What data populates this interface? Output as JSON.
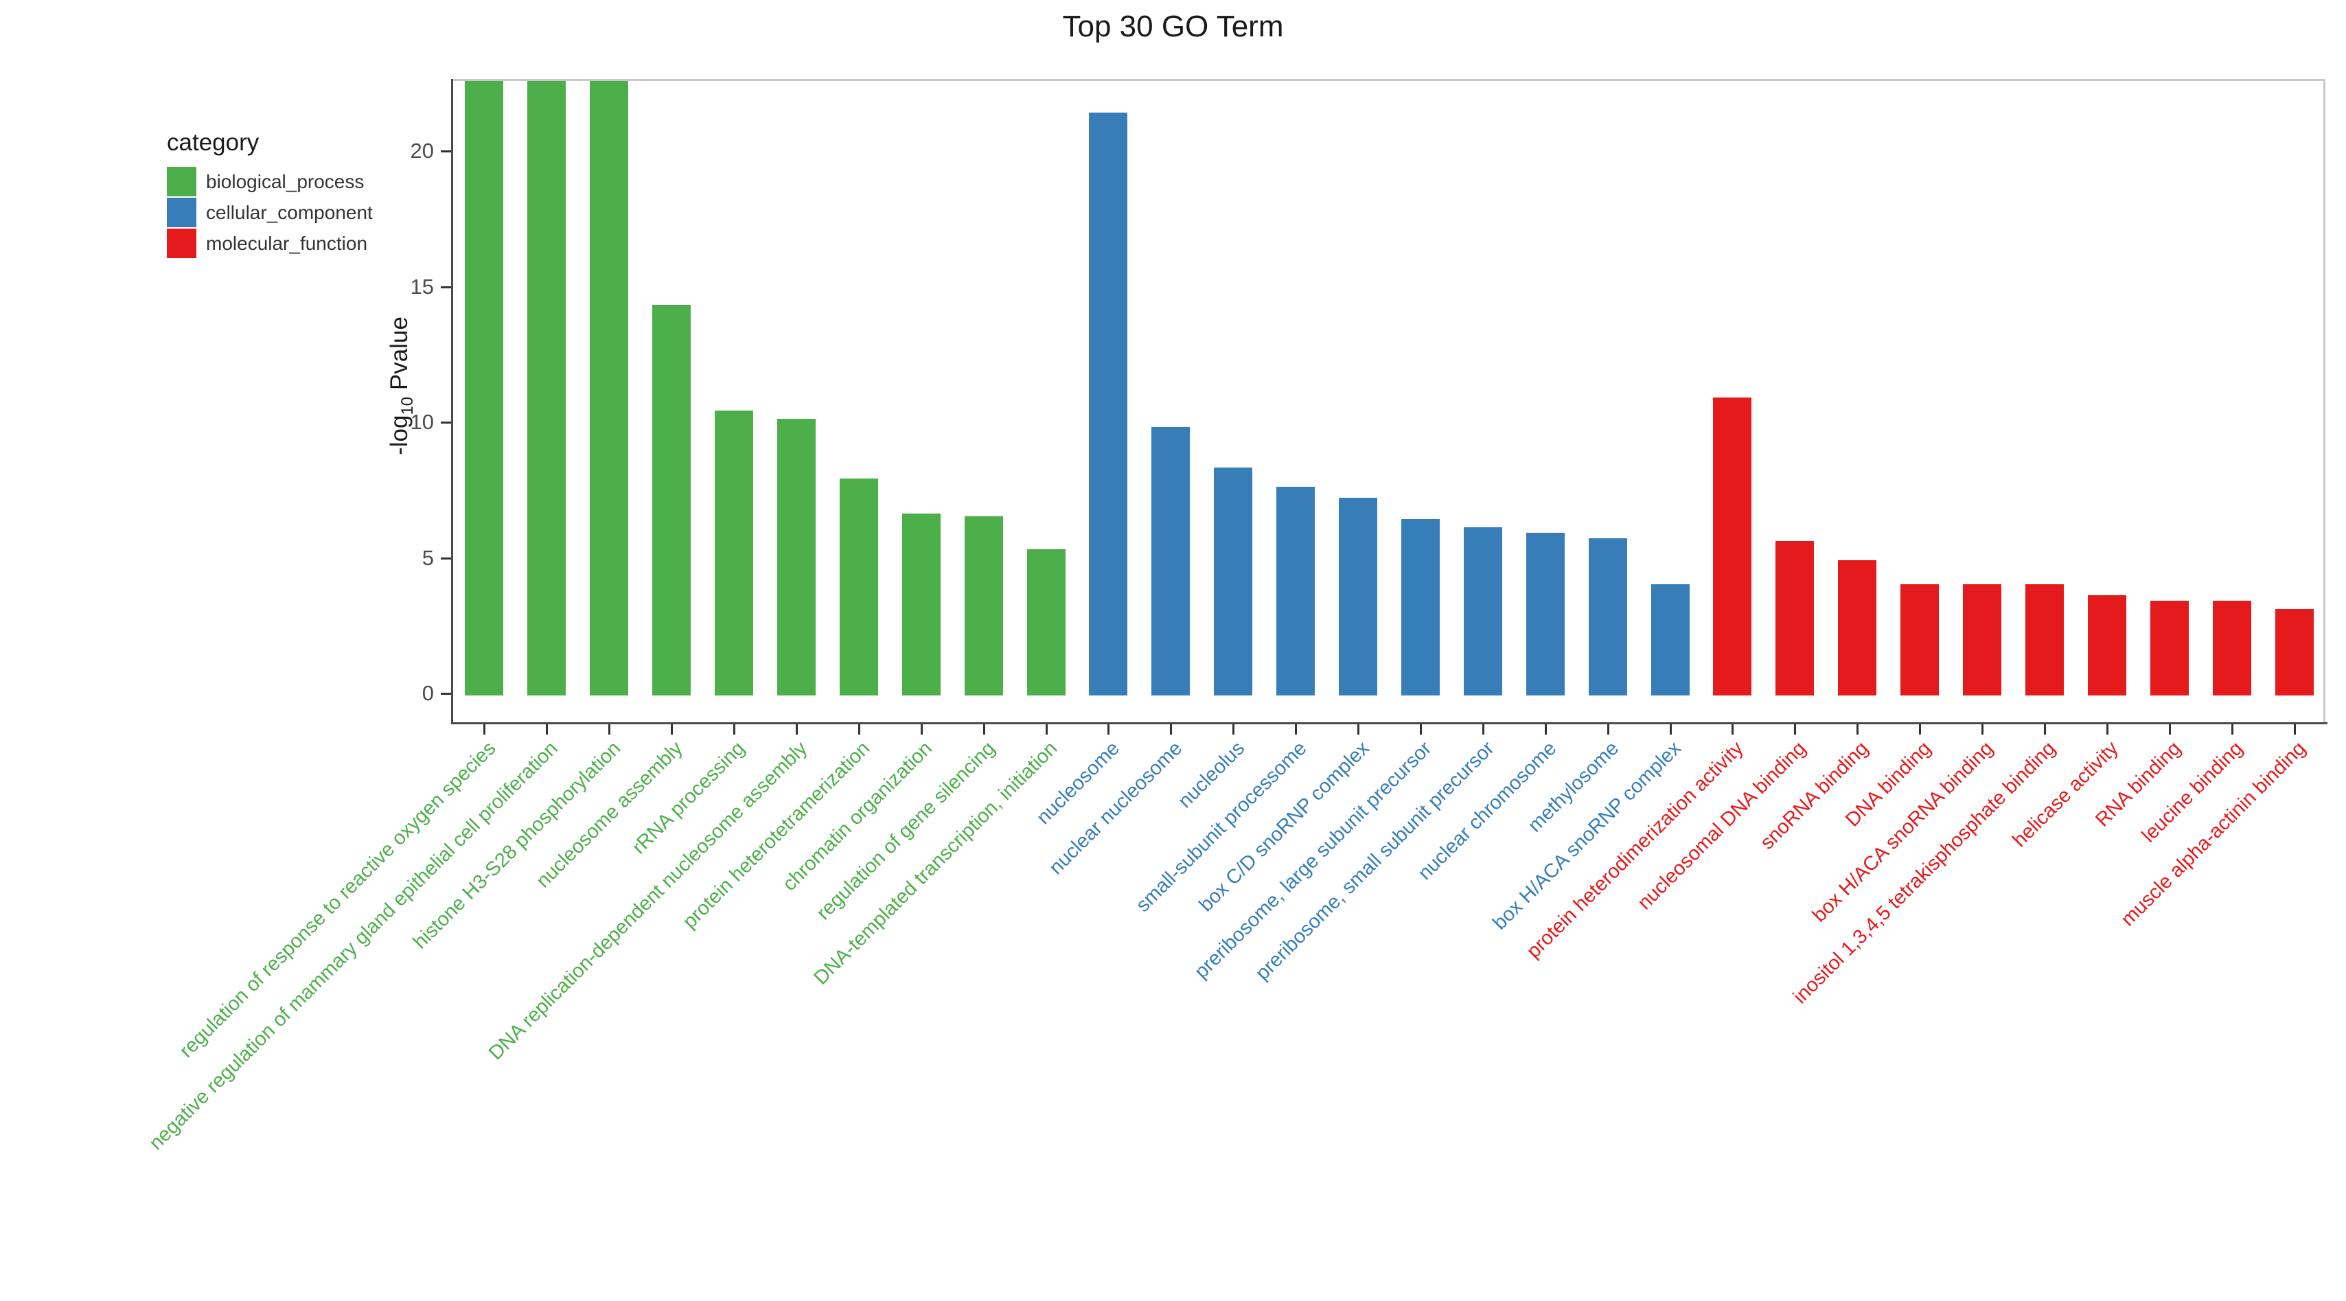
{
  "title": "Top 30 GO Term",
  "y_axis": {
    "label_prefix": "-log",
    "label_sub": "10",
    "label_suffix": " Pvalue",
    "ticks": [
      0,
      5,
      10,
      15,
      20
    ]
  },
  "legend": {
    "title": "category",
    "items": [
      {
        "label": "biological_process",
        "color": "#4DAF4A"
      },
      {
        "label": "cellular_component",
        "color": "#377EB8"
      },
      {
        "label": "molecular_function",
        "color": "#E41A1C"
      }
    ]
  },
  "colors": {
    "biological_process": "#4DAF4A",
    "cellular_component": "#377EB8",
    "molecular_function": "#E41A1C",
    "axis": "#4a4a4a",
    "panel_border": "#c8c8c8",
    "tick_text": "#4d4d4d",
    "title_text": "#1a1a1a"
  },
  "chart_data": {
    "type": "bar",
    "title": "Top 30 GO Term",
    "xlabel": "",
    "ylabel": "-log10 Pvalue",
    "ylim": [
      0,
      22.7
    ],
    "grid": false,
    "legend_position": "left-top-outside",
    "note": "first three bars are clipped at the top of the panel (values exceed visible axis range)",
    "bars": [
      {
        "label": "regulation of response to reactive oxygen species",
        "category": "biological_process",
        "value": 23.0,
        "clipped": true
      },
      {
        "label": "negative regulation of mammary gland epithelial cell proliferation",
        "category": "biological_process",
        "value": 23.0,
        "clipped": true
      },
      {
        "label": "histone H3-S28 phosphorylation",
        "category": "biological_process",
        "value": 23.0,
        "clipped": true
      },
      {
        "label": "nucleosome assembly",
        "category": "biological_process",
        "value": 14.4
      },
      {
        "label": "rRNA processing",
        "category": "biological_process",
        "value": 10.5
      },
      {
        "label": "DNA replication-dependent nucleosome assembly",
        "category": "biological_process",
        "value": 10.2
      },
      {
        "label": "protein heterotetramerization",
        "category": "biological_process",
        "value": 8.0
      },
      {
        "label": "chromatin organization",
        "category": "biological_process",
        "value": 6.7
      },
      {
        "label": "regulation of gene silencing",
        "category": "biological_process",
        "value": 6.6
      },
      {
        "label": "DNA-templated transcription, initiation",
        "category": "biological_process",
        "value": 5.4
      },
      {
        "label": "nucleosome",
        "category": "cellular_component",
        "value": 21.5
      },
      {
        "label": "nuclear nucleosome",
        "category": "cellular_component",
        "value": 9.9
      },
      {
        "label": "nucleolus",
        "category": "cellular_component",
        "value": 8.4
      },
      {
        "label": "small-subunit processome",
        "category": "cellular_component",
        "value": 7.7
      },
      {
        "label": "box C/D snoRNP complex",
        "category": "cellular_component",
        "value": 7.3
      },
      {
        "label": "preribosome, large subunit precursor",
        "category": "cellular_component",
        "value": 6.5
      },
      {
        "label": "preribosome, small subunit precursor",
        "category": "cellular_component",
        "value": 6.2
      },
      {
        "label": "nuclear chromosome",
        "category": "cellular_component",
        "value": 6.0
      },
      {
        "label": "methylosome",
        "category": "cellular_component",
        "value": 5.8
      },
      {
        "label": "box H/ACA snoRNP complex",
        "category": "cellular_component",
        "value": 4.1
      },
      {
        "label": "protein heterodimerization activity",
        "category": "molecular_function",
        "value": 11.0
      },
      {
        "label": "nucleosomal DNA binding",
        "category": "molecular_function",
        "value": 5.7
      },
      {
        "label": "snoRNA binding",
        "category": "molecular_function",
        "value": 5.0
      },
      {
        "label": "DNA binding",
        "category": "molecular_function",
        "value": 4.1
      },
      {
        "label": "box H/ACA snoRNA binding",
        "category": "molecular_function",
        "value": 4.1
      },
      {
        "label": "inositol 1,3,4,5 tetrakisphosphate binding",
        "category": "molecular_function",
        "value": 4.1
      },
      {
        "label": "helicase activity",
        "category": "molecular_function",
        "value": 3.7
      },
      {
        "label": "RNA binding",
        "category": "molecular_function",
        "value": 3.5
      },
      {
        "label": "leucine binding",
        "category": "molecular_function",
        "value": 3.5
      },
      {
        "label": "muscle alpha-actinin binding",
        "category": "molecular_function",
        "value": 3.2
      }
    ]
  }
}
